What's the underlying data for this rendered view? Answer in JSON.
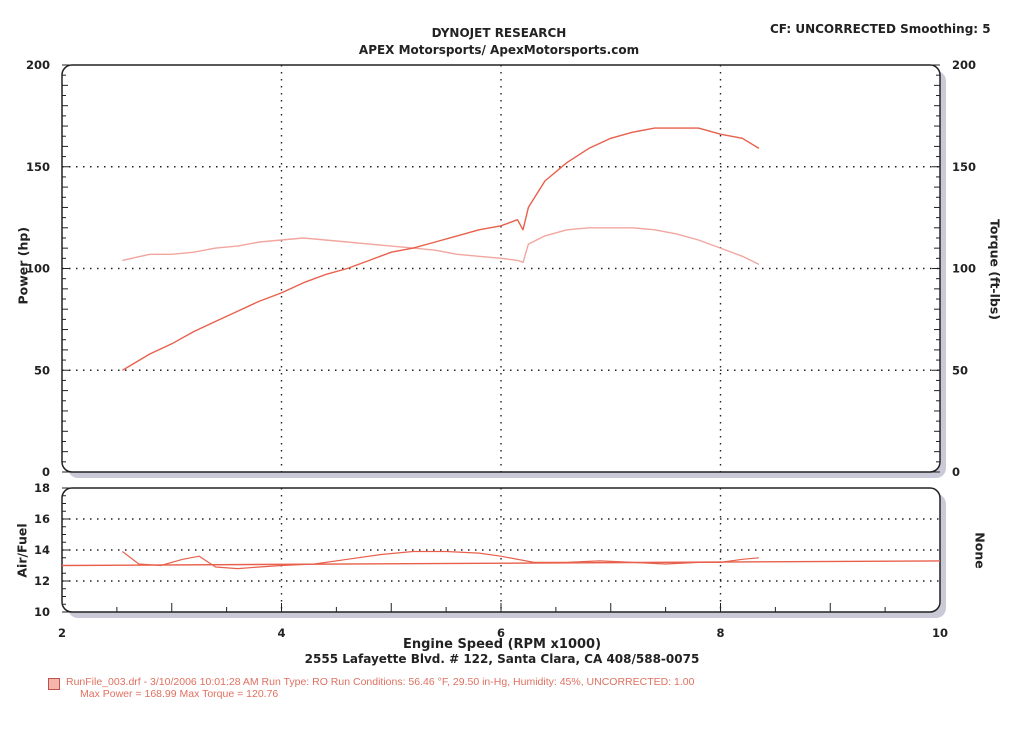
{
  "header": {
    "title": "DYNOJET RESEARCH",
    "subtitle": "APEX Motorsports/ ApexMotorsports.com",
    "correction": "CF: UNCORRECTED  Smoothing: 5"
  },
  "footer": {
    "address": "2555 Lafayette Blvd. # 122, Santa Clara, CA 408/588-0075",
    "legend_line1": "RunFile_003.drf - 3/10/2006 10:01:28 AM  Run Type: RO  Run Conditions: 56.46 °F, 29.50 in-Hg,  Humidity:  45%, UNCORRECTED: 1.00",
    "legend_line2": "Max Power = 168.99  Max Torque = 120.76"
  },
  "colors": {
    "power": "#e8604c",
    "torque": "#f2a6a0",
    "afr": "#e8604c",
    "grid": "#222222"
  },
  "chart_data": [
    {
      "type": "line",
      "xlabel": "Engine Speed (RPM x1000)",
      "ylabel_left": "Power (hp)",
      "ylabel_right": "Torque (ft-lbs)",
      "xlim": [
        2,
        10
      ],
      "ylim": [
        0,
        200
      ],
      "y2lim": [
        0,
        200
      ],
      "x_ticks": [
        2,
        4,
        6,
        8,
        10
      ],
      "y_ticks": [
        0,
        50,
        100,
        150,
        200
      ],
      "y2_ticks": [
        0,
        50,
        100,
        150,
        200
      ],
      "grid": true,
      "series": [
        {
          "key": "power",
          "x": [
            2.55,
            2.8,
            3.0,
            3.2,
            3.4,
            3.6,
            3.8,
            4.0,
            4.2,
            4.4,
            4.6,
            4.8,
            5.0,
            5.2,
            5.4,
            5.6,
            5.8,
            6.0,
            6.15,
            6.2,
            6.25,
            6.4,
            6.6,
            6.8,
            7.0,
            7.2,
            7.4,
            7.6,
            7.8,
            8.0,
            8.2,
            8.35
          ],
          "y": [
            50,
            58,
            63,
            69,
            74,
            79,
            84,
            88,
            93,
            97,
            100,
            104,
            108,
            110,
            113,
            116,
            119,
            121,
            124,
            119,
            130,
            143,
            152,
            159,
            164,
            167,
            169,
            169,
            169,
            166,
            164,
            159
          ]
        },
        {
          "key": "torque",
          "x": [
            2.55,
            2.8,
            3.0,
            3.2,
            3.4,
            3.6,
            3.8,
            4.0,
            4.2,
            4.4,
            4.6,
            4.8,
            5.0,
            5.2,
            5.4,
            5.6,
            5.8,
            6.0,
            6.15,
            6.2,
            6.25,
            6.4,
            6.6,
            6.8,
            7.0,
            7.2,
            7.4,
            7.6,
            7.8,
            8.0,
            8.2,
            8.35
          ],
          "y": [
            104,
            107,
            107,
            108,
            110,
            111,
            113,
            114,
            115,
            114,
            113,
            112,
            111,
            110,
            109,
            107,
            106,
            105,
            104,
            103,
            112,
            116,
            119,
            120,
            120,
            120,
            119,
            117,
            114,
            110,
            106,
            102
          ]
        }
      ]
    },
    {
      "type": "line",
      "xlabel": "Engine Speed (RPM x1000)",
      "ylabel_left": "Air/Fuel",
      "ylabel_right": "None",
      "xlim": [
        2,
        10
      ],
      "ylim": [
        10,
        18
      ],
      "y_ticks": [
        10,
        12,
        14,
        16,
        18
      ],
      "grid": true,
      "series": [
        {
          "key": "afr",
          "x": [
            2.55,
            2.7,
            2.9,
            3.1,
            3.25,
            3.4,
            3.6,
            3.8,
            4.0,
            4.3,
            4.6,
            4.9,
            5.2,
            5.5,
            5.8,
            6.0,
            6.3,
            6.6,
            6.9,
            7.2,
            7.5,
            7.8,
            8.0,
            8.2,
            8.35
          ],
          "y": [
            13.9,
            13.1,
            13.0,
            13.4,
            13.6,
            12.9,
            12.8,
            12.9,
            13.0,
            13.1,
            13.4,
            13.7,
            13.9,
            13.9,
            13.8,
            13.6,
            13.2,
            13.2,
            13.3,
            13.2,
            13.1,
            13.2,
            13.2,
            13.4,
            13.5
          ]
        },
        {
          "key": "afr_reference",
          "x": [
            2,
            10
          ],
          "y": [
            13.0,
            13.3
          ]
        }
      ]
    }
  ]
}
